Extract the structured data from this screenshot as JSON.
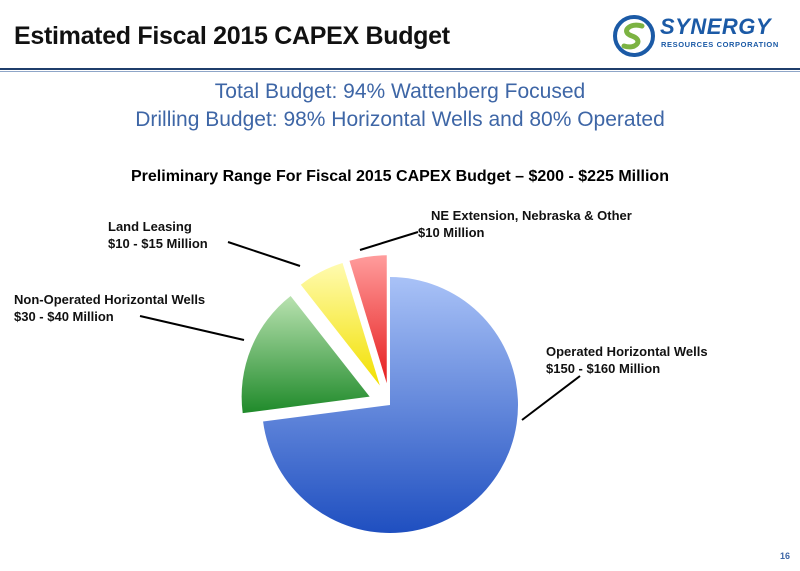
{
  "slide": {
    "title": "Estimated Fiscal 2015 CAPEX Budget",
    "subtitle_line1": "Total Budget: 94% Wattenberg Focused",
    "subtitle_line2": "Drilling Budget: 98% Horizontal Wells and 80% Operated",
    "page_number": "16"
  },
  "logo": {
    "name": "SYNERGY",
    "tagline": "RESOURCES CORPORATION",
    "icon": "synergy-swoosh-logo",
    "colors": {
      "blue": "#1b5aa6",
      "green": "#7cb342"
    }
  },
  "chart_data": {
    "type": "pie",
    "title": "Preliminary Range For Fiscal 2015 CAPEX Budget – $200 - $225 Million",
    "slices": [
      {
        "name": "Operated Horizontal Wells",
        "value_label": "$150 - $160 Million",
        "value": 155,
        "color": "#4a74d4",
        "exploded": false
      },
      {
        "name": "Non-Operated Horizontal Wells",
        "value_label": "$30 - $40 Million",
        "value": 35,
        "color": "#3a9a3a",
        "exploded": true
      },
      {
        "name": "Land Leasing",
        "value_label": "$10 - $15 Million",
        "value": 12.5,
        "color": "#f2e800",
        "exploded": true
      },
      {
        "name": "NE Extension, Nebraska & Other",
        "value_label": "$10 Million",
        "value": 10,
        "color": "#ee3b3b",
        "exploded": true
      }
    ]
  }
}
